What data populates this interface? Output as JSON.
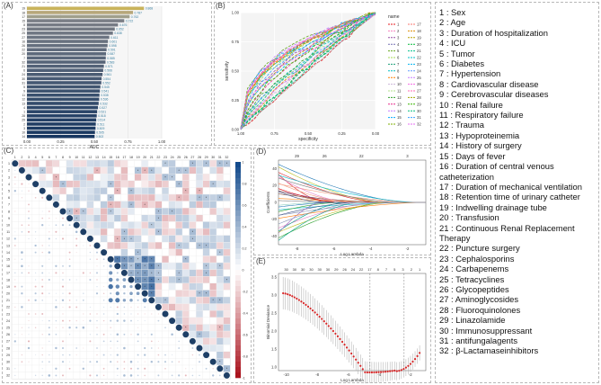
{
  "panels": {
    "a": {
      "label": "(A)"
    },
    "b": {
      "label": "(B)"
    },
    "c": {
      "label": "(C)"
    },
    "d": {
      "label": "(D)"
    },
    "e": {
      "label": "(E)"
    }
  },
  "chart_data": [
    {
      "id": "A",
      "type": "bar",
      "orientation": "horizontal",
      "xlabel": "AUC",
      "xticks": [
        "0.00",
        "0.25",
        "0.50",
        "0.75",
        "1.00"
      ],
      "xlim": [
        0,
        1
      ],
      "categories": [
        "19",
        "18",
        "17",
        "15",
        "8",
        "23",
        "25",
        "27",
        "16",
        "26",
        "22",
        "20",
        "7",
        "32",
        "21",
        "6",
        "24",
        "30",
        "31",
        "5",
        "9",
        "11",
        "12",
        "13",
        "4",
        "1",
        "28",
        "29",
        "2",
        "3",
        "10",
        "14"
      ],
      "values": [
        0.868,
        0.787,
        0.762,
        0.722,
        0.676,
        0.652,
        0.638,
        0.611,
        0.601,
        0.598,
        0.591,
        0.587,
        0.585,
        0.583,
        0.571,
        0.566,
        0.561,
        0.554,
        0.552,
        0.545,
        0.541,
        0.538,
        0.536,
        0.532,
        0.527,
        0.521,
        0.518,
        0.514,
        0.511,
        0.509,
        0.505,
        0.502
      ],
      "value_labels": [
        "0.868",
        "0.787",
        "0.762",
        "0.722",
        "0.676",
        "0.652",
        "0.638",
        "0.611",
        "0.601",
        "0.598",
        "0.591",
        "0.587",
        "0.585",
        "0.583",
        "0.571",
        "0.566",
        "0.561",
        "0.554",
        "0.552",
        "0.545",
        "0.541",
        "0.538",
        "0.536",
        "0.532",
        "0.527",
        "0.521",
        "0.518",
        "0.514",
        "0.511",
        "0.509",
        "0.505",
        "0.502"
      ]
    },
    {
      "id": "B",
      "type": "line",
      "title": "",
      "xlabel": "specificity",
      "ylabel": "sensitivity",
      "xticks": [
        "1.00",
        "0.75",
        "0.50",
        "0.25",
        "0.00"
      ],
      "yticks": [
        "0.00",
        "0.25",
        "0.50",
        "0.75",
        "1.00"
      ],
      "legend_title": "name",
      "legend": [
        "1",
        "2",
        "3",
        "4",
        "5",
        "6",
        "7",
        "8",
        "9",
        "10",
        "11",
        "12",
        "13",
        "14",
        "15",
        "16",
        "17",
        "18",
        "19",
        "20",
        "21",
        "22",
        "23",
        "24",
        "25",
        "26",
        "27",
        "28",
        "29",
        "30",
        "31",
        "32"
      ]
    },
    {
      "id": "C",
      "type": "heatmap",
      "labels": [
        "1",
        "2",
        "3",
        "4",
        "5",
        "6",
        "7",
        "8",
        "9",
        "10",
        "11",
        "12",
        "13",
        "14",
        "15",
        "16",
        "17",
        "18",
        "19",
        "20",
        "21",
        "22",
        "23",
        "24",
        "25",
        "26",
        "27",
        "28",
        "29",
        "30",
        "31",
        "32"
      ],
      "colorbar_ticks": [
        "1",
        "0.8",
        "0.6",
        "0.4",
        "0.2",
        "0",
        "-0.2",
        "-0.4",
        "-0.6",
        "-0.8",
        "-1"
      ]
    },
    {
      "id": "D",
      "type": "line",
      "xlabel": "Log Lambda",
      "ylabel": "Coefficients",
      "xticks": [
        "-8",
        "-6",
        "-4",
        "-2"
      ],
      "yticks": [
        "-40",
        "-20",
        "0",
        "20",
        "40"
      ],
      "top_ticks": [
        "29",
        "26",
        "22",
        "3"
      ],
      "xlim": [
        -9,
        -1
      ],
      "ylim": [
        -50,
        50
      ]
    },
    {
      "id": "E",
      "type": "line",
      "xlabel": "Log Lambda",
      "ylabel": "Binomial Deviance",
      "xticks": [
        "-10",
        "-8",
        "-6",
        "-4",
        "-2"
      ],
      "yticks": [
        "1.0",
        "1.5",
        "2.0",
        "2.5",
        "3.0",
        "3.5"
      ],
      "top_ticks": [
        "30",
        "30",
        "30",
        "30",
        "30",
        "30",
        "29",
        "26",
        "24",
        "22",
        "17",
        "8",
        "7",
        "5",
        "3",
        "2",
        "1"
      ],
      "xlim": [
        -10.5,
        -1
      ],
      "ylim": [
        0.9,
        3.6
      ]
    }
  ],
  "variables": [
    "1 : Sex",
    "2 : Age",
    "3 : Duration of hospitalization",
    "4 : ICU",
    "5 : Tumor",
    "6 : Diabetes",
    "7 : Hypertension",
    "8 : Cardiovascular disease",
    "9 : Cerebrovascular diseases",
    "10 : Renal failure",
    "11 : Respiratory failure",
    "12 : Trauma",
    "13 : Hypoproteinemia",
    "14 : History of surgery",
    "15 : Days of fever",
    "16 : Duration of central venous catheterization",
    "17 : Duration of mechanical ventilation",
    "18 : Retention time of urinary catheter",
    "19 : Indwelling drainage tube",
    "20 : Transfusion",
    "21 : Continuous Renal Replacement Therapy",
    "22 : Puncture surgery",
    "23 : Cephalosporins",
    "24 : Carbapenems",
    "25 : Tetracyclines",
    "26 : Glycopeptides",
    "27 : Aminoglycosides",
    "28 : Fluoroquinolones",
    "29 : Linazolamide",
    "30 : Immunosuppressant",
    "31 : antifungalagents",
    "32 : β-Lactamaseinhibitors"
  ]
}
